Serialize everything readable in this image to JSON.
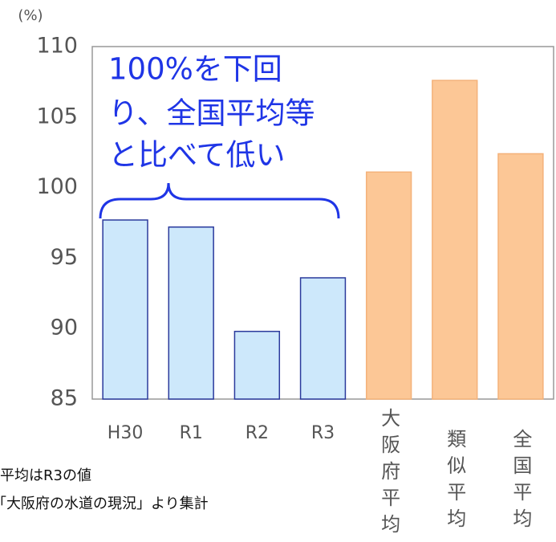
{
  "chart_data": {
    "type": "bar",
    "y_axis_label": "(%)",
    "categories": [
      "H30",
      "R1",
      "R2",
      "R3",
      "大阪府平均",
      "類似平均",
      "全国平均"
    ],
    "values": [
      97.7,
      97.2,
      89.8,
      93.6,
      101.1,
      107.6,
      102.4
    ],
    "colors": [
      "#cde8fb",
      "#cde8fb",
      "#cde8fb",
      "#cde8fb",
      "#fcc796",
      "#fcc796",
      "#fcc796"
    ],
    "stroke_colors": [
      "#2b3a9c",
      "#2b3a9c",
      "#2b3a9c",
      "#2b3a9c",
      "#f4b27a",
      "#f4b27a",
      "#f4b27a"
    ],
    "ylim": [
      85,
      110
    ],
    "yticks": [
      85,
      90,
      95,
      100,
      105,
      110
    ],
    "grid": false,
    "annotation": {
      "lines": [
        "100%を下回",
        "り、全国平均等",
        "と比べて低い"
      ],
      "color": "#1f35e6"
    },
    "footnotes": [
      "平均はR3の値",
      "「大阪府の水道の現況」より集計"
    ]
  }
}
